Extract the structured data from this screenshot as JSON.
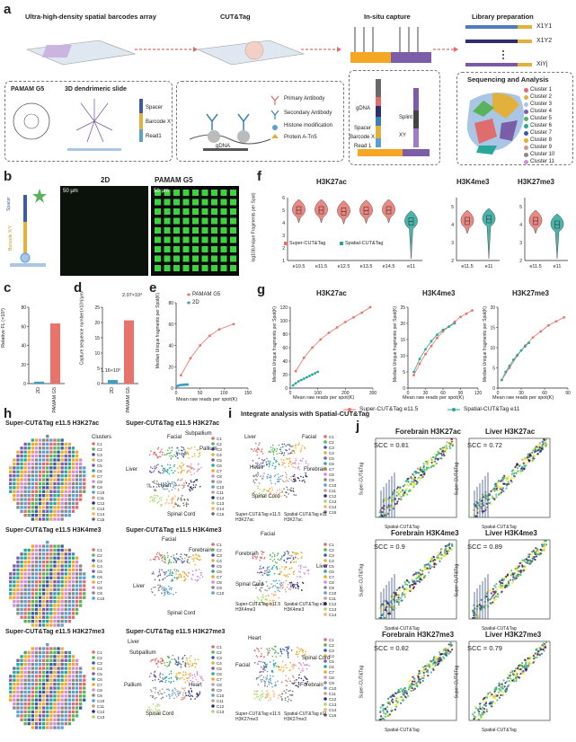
{
  "panels": {
    "a": {
      "label": "a",
      "steps": [
        "Ultra-high-density spatial barcodes array",
        "CUT&Tag",
        "In-situ capture",
        "Library preparation"
      ],
      "box1": {
        "left_title": "PAMAM G5",
        "mid_title": "3D dendrimeric slide",
        "spacer": "Spacer",
        "barcode": "Barcode X",
        "read1": "Read1"
      },
      "box2": {
        "primary": "Primary Antibody",
        "secondary": "Secondary Antibody",
        "histone": "Histone modification",
        "protein": "Protein A-Tn5",
        "gdna": "gDNA"
      },
      "box3": {
        "gdna": "gDNA",
        "splint": "Splint",
        "spacer": "Spacer",
        "barcode": "Barcode X",
        "read1": "Read 1",
        "xy": "XY"
      },
      "lib": {
        "labels": [
          "X1Y1",
          "X1Y2",
          "XiYj"
        ],
        "seq_title": "Sequencing and Analysis",
        "clusters": [
          "Cluster 1",
          "Cluster 2",
          "Cluster 3",
          "Cluster 4",
          "Cluster 5",
          "Cluster 6",
          "Cluster 7",
          "Cluster 8",
          "Cluster 9",
          "Cluster 10",
          "Cluster 11"
        ]
      }
    },
    "b": {
      "label": "b",
      "title_2d": "2D",
      "title_pamam": "PAMAM G5",
      "scale_2d": "50 μm",
      "scale_pamam": "50 μm",
      "spacer": "Spacer",
      "barcode": "Barcode X/Y"
    },
    "c": {
      "label": "c",
      "ylabel": "Relative FL (×10³)",
      "categories": [
        "2D",
        "PAMAM G5"
      ]
    },
    "d": {
      "label": "d",
      "ylabel": "Capture sequence number(×10³)/μm²",
      "annot_top": "2.07×10⁴",
      "annot_low": "1.16×10³",
      "categories": [
        "2D",
        "PAMAM G5"
      ]
    },
    "e": {
      "label": "e",
      "ylabel": "Median Unique fragments per Spot(K)",
      "xlabel": "Mean raw reads per spot(K)",
      "legend": [
        "PAMAM G5",
        "2D"
      ]
    },
    "f": {
      "label": "f",
      "titles": [
        "H3K27ac",
        "H3K4me3",
        "H3K27me3"
      ],
      "ylabel": "log10(Unique Fragments per Spot)",
      "legend": [
        "Super-CUT&Tag",
        "Spatial-CUT&Tag"
      ],
      "x1": [
        "e10.5",
        "e11.5",
        "e12.5",
        "e13.5",
        "e14.5",
        "e11"
      ],
      "x2": [
        "e11.5",
        "e11"
      ],
      "x3": [
        "e11.5",
        "e11"
      ]
    },
    "g": {
      "label": "g",
      "titles": [
        "H3K27ac",
        "H3K4me3",
        "H3K27me3"
      ],
      "ylabel": "Median Unique fragments per Spot(K)",
      "xlabel": "Mean raw reads per spot(K)",
      "legend": [
        "Super-CUT&Tag e11.5",
        "Spatial-CUT&Tag e11"
      ]
    },
    "h": {
      "label": "h",
      "row_titles_left": [
        "Super-CUT&Tag e11.5 H3K27ac",
        "Super-CUT&Tag e11.5 H3K4me3",
        "Super-CUT&Tag e11.5 H3K27me3"
      ],
      "row_titles_right": [
        "Super-CUT&Tag e11.5 H3K27ac",
        "Super-CUT&Tag e11.5 H3K4me3",
        "Super-CUT&Tag e11.5 H3K27me3"
      ],
      "clusters_label": "Clusters",
      "umap1": [
        "Facial",
        "Subpallium",
        "Pallium",
        "Liver",
        "Heart",
        "Spinal Cord"
      ],
      "umap2": [
        "Facial",
        "Forebrain",
        "Liver",
        "Spinal Cord"
      ],
      "umap3": [
        "Liver",
        "Subpallium",
        "Pallium",
        "Heart",
        "Spinal Cord"
      ]
    },
    "i": {
      "label": "i",
      "title": "Integrate analysis with Spatial-CUT&Tag",
      "umap1": [
        "Liver",
        "Facial",
        "Heart",
        "Forebrain",
        "Spinal Cord"
      ],
      "umap2": [
        "Facial",
        "Forebrain",
        "Liver",
        "Spinal Cord"
      ],
      "umap3": [
        "Heart",
        "Facial",
        "Spinal Cord",
        "Forebrain"
      ],
      "leg1a": "Super-CUT&Tag e11.5 H3K27ac",
      "leg1b": "Spatial-CUT&Tag e11 H3K27ac",
      "leg2a": "Super-CUT&Tag e11.5 H3K4me3",
      "leg2b": "Spatial-CUT&Tag e11 H3K4me3",
      "leg3a": "Super-CUT&Tag e11.5 H3K27me3",
      "leg3b": "Spatial-CUT&Tag e11 H3K27me3"
    },
    "j": {
      "label": "j",
      "titles": [
        "Forebrain H3K27ac",
        "Liver H3K27ac",
        "Forebrain H3K4me3",
        "Liver H3K4me3",
        "Forebrain H3K27me3",
        "Liver H3K27me3"
      ],
      "scc": [
        "SCC = 0.81",
        "SCC = 0.72",
        "SCC = 0.9",
        "SCC = 0.89",
        "SCC = 0.82",
        "SCC = 0.79"
      ],
      "xlabel": "Spatial-CUT&Tag",
      "ylabel": "Super-CUT&Tag"
    }
  },
  "chart_data": [
    {
      "type": "bar",
      "panel": "c",
      "categories": [
        "2D",
        "PAMAM G5"
      ],
      "values": [
        2,
        63
      ],
      "ylabel": "Relative FL (×10³)",
      "ylim": [
        0,
        80
      ]
    },
    {
      "type": "bar",
      "panel": "d",
      "categories": [
        "2D",
        "PAMAM G5"
      ],
      "values": [
        1.16,
        20.7
      ],
      "ylabel": "Capture sequence number(×10³)/μm²",
      "ylim": [
        0,
        25
      ]
    },
    {
      "type": "line",
      "panel": "e",
      "xlabel": "Mean raw reads per spot(K)",
      "ylabel": "Median Unique fragments per Spot(K)",
      "xlim": [
        0,
        150
      ],
      "ylim": [
        0,
        80
      ],
      "series": [
        {
          "name": "PAMAM G5",
          "color": "#e8736b",
          "x": [
            10,
            30,
            50,
            70,
            90,
            120
          ],
          "y": [
            12,
            28,
            40,
            49,
            55,
            60
          ]
        },
        {
          "name": "2D",
          "color": "#3a9ec9",
          "x": [
            3,
            6,
            9,
            12,
            15,
            18,
            21,
            24
          ],
          "y": [
            2,
            2.5,
            2.8,
            3,
            3.1,
            3.2,
            3.3,
            3.3
          ]
        }
      ]
    },
    {
      "type": "line",
      "panel": "g-H3K27ac",
      "xlim": [
        0,
        300
      ],
      "ylim": [
        0,
        120
      ],
      "series": [
        {
          "name": "Super-CUT&Tag e11.5",
          "color": "#e8736b",
          "x": [
            20,
            50,
            80,
            110,
            140,
            170,
            200,
            230,
            260,
            290
          ],
          "y": [
            25,
            45,
            60,
            72,
            82,
            90,
            98,
            105,
            112,
            120
          ]
        },
        {
          "name": "Spatial-CUT&Tag e11",
          "color": "#2aa79b",
          "x": [
            10,
            20,
            30,
            40,
            50,
            60,
            70,
            80,
            90,
            100
          ],
          "y": [
            4,
            7,
            10,
            12,
            14,
            16,
            18,
            20,
            22,
            24
          ]
        }
      ]
    },
    {
      "type": "line",
      "panel": "g-H3K4me3",
      "xlim": [
        0,
        120
      ],
      "ylim": [
        0,
        25
      ],
      "series": [
        {
          "name": "Super-CUT&Tag e11.5",
          "color": "#e8736b",
          "x": [
            10,
            20,
            30,
            40,
            50,
            60,
            70,
            80,
            90,
            100,
            110
          ],
          "y": [
            4,
            7.5,
            10.5,
            13,
            15.5,
            17.5,
            19,
            20.5,
            22,
            23,
            24
          ]
        },
        {
          "name": "Spatial-CUT&Tag e11",
          "color": "#2aa79b",
          "x": [
            10,
            20,
            30,
            40,
            50,
            60,
            70,
            80
          ],
          "y": [
            5,
            9,
            12,
            14.5,
            16.5,
            18,
            19,
            20
          ]
        }
      ]
    },
    {
      "type": "line",
      "panel": "g-H3K27me3",
      "xlim": [
        0,
        90
      ],
      "ylim": [
        0,
        20
      ],
      "series": [
        {
          "name": "Super-CUT&Tag e11.5",
          "color": "#e8736b",
          "x": [
            5,
            15,
            25,
            35,
            45,
            55,
            65,
            75,
            85
          ],
          "y": [
            2,
            5,
            8,
            10.5,
            12.5,
            14,
            15.5,
            16.5,
            17.5
          ]
        },
        {
          "name": "Spatial-CUT&Tag e11",
          "color": "#2aa79b",
          "x": [
            5,
            10,
            15,
            20,
            25,
            30,
            35,
            40
          ],
          "y": [
            2,
            4,
            5.5,
            7,
            8.2,
            9.3,
            10.3,
            11.2
          ]
        }
      ]
    },
    {
      "type": "violin",
      "panel": "f-H3K27ac",
      "categories": [
        "e10.5",
        "e11.5",
        "e12.5",
        "e13.5",
        "e14.5",
        "e11"
      ],
      "medians": [
        5.0,
        5.0,
        4.9,
        4.95,
        5.0,
        4.1
      ],
      "ylim": [
        1,
        6
      ]
    },
    {
      "type": "violin",
      "panel": "f-H3K4me3",
      "categories": [
        "e11.5",
        "e11"
      ],
      "medians": [
        4.2,
        4.3
      ],
      "ylim": [
        2,
        5.5
      ]
    },
    {
      "type": "violin",
      "panel": "f-H3K27me3",
      "categories": [
        "e11.5",
        "e11"
      ],
      "medians": [
        4.2,
        4.0
      ],
      "ylim": [
        2,
        5.5
      ]
    }
  ]
}
